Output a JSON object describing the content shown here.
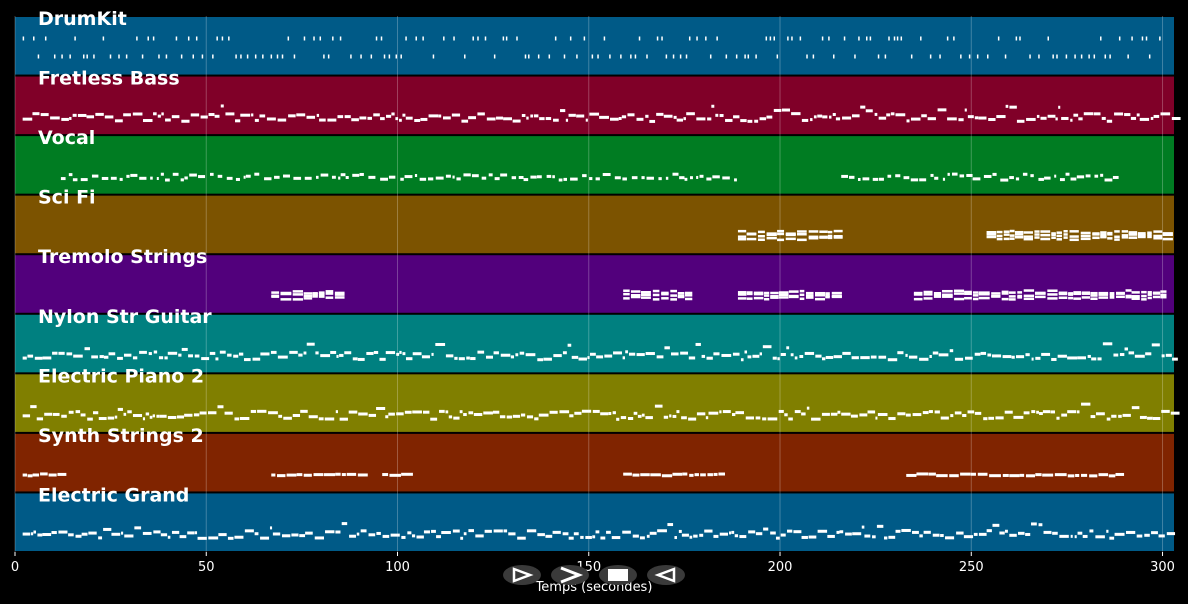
{
  "axis": {
    "xlabel": "Temps (secondes)",
    "x_min": 0,
    "x_max": 303,
    "ticks": [
      0,
      50,
      100,
      150,
      200,
      250,
      300
    ]
  },
  "tracks": [
    {
      "name": "DrumKit",
      "color": "#005a87",
      "note_style": "hits",
      "segments": [
        [
          2,
          300
        ]
      ]
    },
    {
      "name": "Fretless Bass",
      "color": "#800028",
      "note_style": "dense",
      "segments": [
        [
          2,
          303
        ]
      ]
    },
    {
      "name": "Vocal",
      "color": "#007c22",
      "note_style": "sparse",
      "segments": [
        [
          12,
          188
        ],
        [
          216,
          288
        ]
      ]
    },
    {
      "name": "Sci Fi",
      "color": "#7c5300",
      "note_style": "chords",
      "segments": [
        [
          189,
          215
        ],
        [
          254,
          301
        ]
      ]
    },
    {
      "name": "Tremolo Strings",
      "color": "#52007c",
      "note_style": "chords",
      "segments": [
        [
          67,
          85
        ],
        [
          159,
          177
        ],
        [
          189,
          215
        ],
        [
          235,
          301
        ]
      ]
    },
    {
      "name": "Nylon Str Guitar",
      "color": "#008080",
      "note_style": "dense",
      "segments": [
        [
          2,
          303
        ]
      ]
    },
    {
      "name": "Electric Piano 2",
      "color": "#807f00",
      "note_style": "dense",
      "segments": [
        [
          2,
          303
        ]
      ]
    },
    {
      "name": "Synth Strings 2",
      "color": "#802400",
      "note_style": "line",
      "segments": [
        [
          2,
          13
        ],
        [
          67,
          92
        ],
        [
          96,
          103
        ],
        [
          159,
          184
        ],
        [
          233,
          290
        ]
      ]
    },
    {
      "name": "Electric Grand",
      "color": "#005a87",
      "note_style": "dense",
      "segments": [
        [
          2,
          303
        ]
      ]
    }
  ],
  "controls": [
    {
      "name": "play-button",
      "icon": "play-icon",
      "glyph": "⊳"
    },
    {
      "name": "forward-button",
      "icon": "forward-icon",
      "glyph": ">"
    },
    {
      "name": "stop-button",
      "icon": "stop-icon",
      "glyph": "■"
    },
    {
      "name": "back-button",
      "icon": "back-icon",
      "glyph": "⊲"
    }
  ]
}
